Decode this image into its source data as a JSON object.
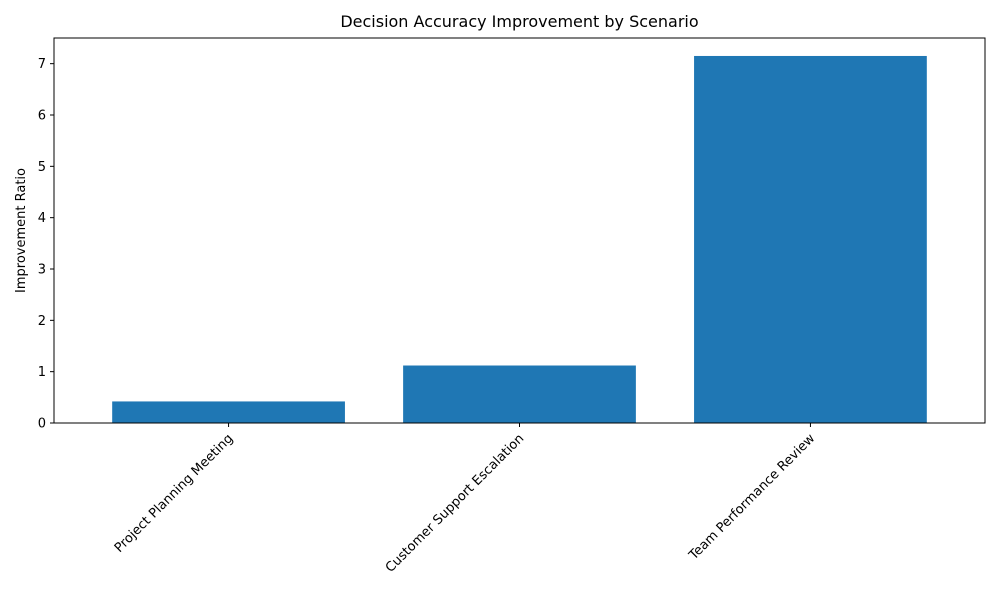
{
  "chart_data": {
    "type": "bar",
    "title": "Decision Accuracy Improvement by Scenario",
    "xlabel": "",
    "ylabel": "Improvement Ratio",
    "categories": [
      "Project Planning Meeting",
      "Customer Support Escalation",
      "Team Performance Review"
    ],
    "values": [
      0.42,
      1.12,
      7.15
    ],
    "ylim": [
      0,
      7.5
    ],
    "yticks": [
      0,
      1,
      2,
      3,
      4,
      5,
      6,
      7
    ],
    "grid": false,
    "bar_color": "#1f77b4"
  }
}
